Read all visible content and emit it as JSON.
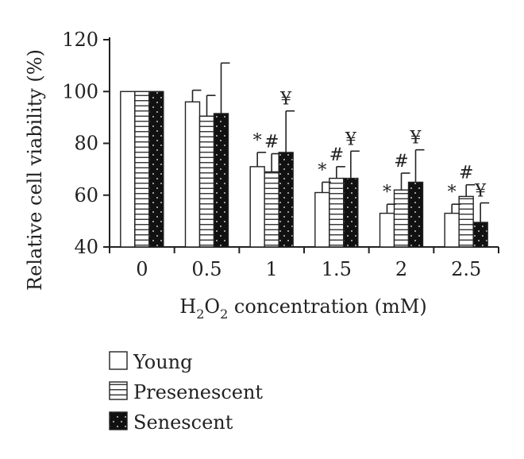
{
  "chart_data": {
    "type": "bar",
    "xlabel_main": "H",
    "xlabel_sub1": "2",
    "xlabel_mid": "O",
    "xlabel_sub2": "2",
    "xlabel_rest": " concentration (mM)",
    "ylabel": "Relative cell viability (%)",
    "ylim": [
      40,
      120
    ],
    "yticks": [
      40,
      60,
      80,
      100,
      120
    ],
    "categories": [
      "0",
      "0.5",
      "1",
      "1.5",
      "2",
      "2.5"
    ],
    "legend_position": "bottom-left",
    "series": [
      {
        "name": "Young",
        "pattern": "white",
        "values": [
          100,
          96,
          71,
          61,
          53,
          53
        ],
        "errors": [
          0,
          4.5,
          5.5,
          4,
          3.5,
          3.5
        ],
        "markers": [
          "",
          "",
          "*",
          "*",
          "*",
          "*"
        ]
      },
      {
        "name": "Presenescent",
        "pattern": "horizontal-stripes",
        "values": [
          100,
          90.5,
          69,
          66.5,
          62,
          59.5
        ],
        "errors": [
          0,
          8,
          7,
          4.5,
          6.5,
          4.5
        ],
        "markers": [
          "",
          "",
          "#",
          "#",
          "#",
          "#"
        ]
      },
      {
        "name": "Senescent",
        "pattern": "black-dotted",
        "values": [
          100,
          91.5,
          76.5,
          66.5,
          65,
          49.5
        ],
        "errors": [
          0,
          19.5,
          16,
          10.5,
          12.5,
          7.5
        ],
        "markers": [
          "",
          "",
          "¥",
          "¥",
          "¥",
          "¥"
        ]
      }
    ],
    "colors": {
      "axis": "#222222",
      "bar_fill_dark": "#111111",
      "stripe": "#222222",
      "dot": "#ffffff"
    }
  }
}
